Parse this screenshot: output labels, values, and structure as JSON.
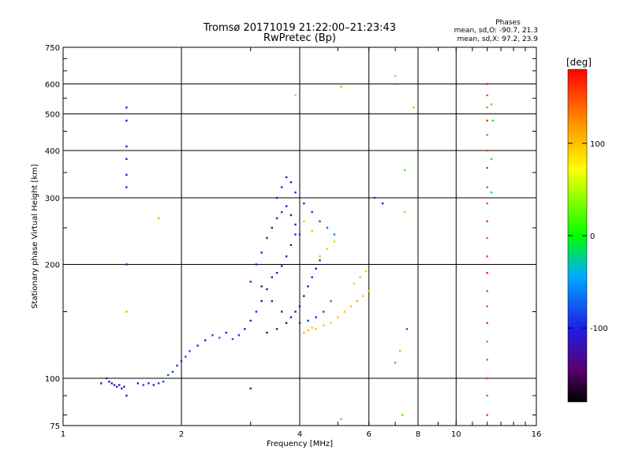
{
  "chart_data": {
    "type": "scatter",
    "title": "Tromsø 20171019 21:22:00–21:23:43",
    "subtitle": "RwPretec (Bp)",
    "xlabel": "Frequency [MHz]",
    "ylabel": "Stationary phase Virtual Height [km]",
    "x_scale": "log",
    "y_scale": "log",
    "xlim": [
      1,
      16
    ],
    "ylim": [
      75,
      750
    ],
    "x_ticks": [
      1,
      2,
      4,
      6,
      8,
      10,
      16
    ],
    "x_tick_labels": [
      "1",
      "2",
      "4",
      "6",
      "8",
      "10",
      "16"
    ],
    "y_ticks": [
      75,
      100,
      200,
      300,
      400,
      500,
      600,
      750
    ],
    "y_tick_labels": [
      "75",
      "100",
      "200",
      "300",
      "400",
      "500",
      "600",
      "750"
    ],
    "grid": true,
    "stats": {
      "heading": "Phases",
      "line1": "mean, sd,O: -90.7, 21.3",
      "line2": "mean, sd,X:  97.2, 23.9"
    },
    "colorbar": {
      "label": "[deg]",
      "range": [
        -180,
        180
      ],
      "ticks": [
        100,
        0,
        -100
      ],
      "tick_labels": [
        "100",
        "0",
        "-100"
      ]
    },
    "series": [
      {
        "points": [
          [
            1.25,
            97,
            -110
          ],
          [
            1.29,
            100,
            -115
          ],
          [
            1.31,
            98,
            -112
          ],
          [
            1.33,
            97,
            -108
          ],
          [
            1.35,
            96,
            -118
          ],
          [
            1.37,
            95,
            -105
          ],
          [
            1.39,
            96,
            -110
          ],
          [
            1.41,
            94,
            -100
          ],
          [
            1.43,
            95,
            -115
          ],
          [
            1.45,
            90,
            -120
          ],
          [
            1.55,
            97,
            -100
          ],
          [
            1.6,
            96,
            -90
          ],
          [
            1.65,
            97,
            -95
          ],
          [
            1.7,
            96,
            -100
          ],
          [
            1.75,
            97,
            -92
          ],
          [
            1.8,
            98,
            -85
          ],
          [
            1.85,
            102,
            -80
          ],
          [
            1.9,
            104,
            -90
          ],
          [
            1.95,
            108,
            -95
          ],
          [
            2.0,
            111,
            -100
          ],
          [
            2.05,
            114,
            -85
          ],
          [
            2.1,
            118,
            -80
          ],
          [
            2.2,
            122,
            -95
          ],
          [
            2.3,
            126,
            -100
          ],
          [
            2.4,
            130,
            -90
          ],
          [
            2.5,
            128,
            -70
          ],
          [
            2.6,
            132,
            -105
          ],
          [
            2.7,
            127,
            -80
          ],
          [
            2.8,
            130,
            -95
          ],
          [
            2.9,
            135,
            -110
          ],
          [
            3.0,
            142,
            -120
          ],
          [
            3.1,
            150,
            -100
          ],
          [
            3.2,
            160,
            -130
          ],
          [
            3.3,
            172,
            -115
          ],
          [
            3.4,
            185,
            -110
          ],
          [
            3.5,
            190,
            -120
          ],
          [
            3.6,
            198,
            -105
          ],
          [
            3.7,
            210,
            -115
          ],
          [
            3.8,
            225,
            -125
          ],
          [
            3.9,
            240,
            -100
          ],
          [
            3.1,
            200,
            -110
          ],
          [
            3.2,
            215,
            -100
          ],
          [
            3.3,
            235,
            -120
          ],
          [
            3.4,
            250,
            -115
          ],
          [
            3.5,
            265,
            -105
          ],
          [
            3.6,
            275,
            -95
          ],
          [
            3.7,
            285,
            -110
          ],
          [
            3.8,
            270,
            -120
          ],
          [
            3.9,
            255,
            -100
          ],
          [
            4.0,
            240,
            -90
          ],
          [
            3.0,
            180,
            -95
          ],
          [
            3.2,
            175,
            -130
          ],
          [
            3.4,
            160,
            -125
          ],
          [
            3.6,
            150,
            -110
          ],
          [
            3.8,
            145,
            -140
          ],
          [
            4.0,
            140,
            -120
          ],
          [
            4.2,
            142,
            -100
          ],
          [
            4.4,
            145,
            -110
          ],
          [
            4.6,
            150,
            -80
          ],
          [
            4.8,
            160,
            -60
          ],
          [
            3.5,
            300,
            -115
          ],
          [
            3.6,
            320,
            -110
          ],
          [
            3.7,
            340,
            -120
          ],
          [
            3.8,
            330,
            -100
          ],
          [
            3.9,
            310,
            -105
          ],
          [
            4.1,
            290,
            -95
          ],
          [
            4.3,
            275,
            -90
          ],
          [
            4.5,
            260,
            -80
          ],
          [
            4.7,
            250,
            -70
          ],
          [
            4.9,
            240,
            -60
          ],
          [
            4.2,
            175,
            -110
          ],
          [
            4.3,
            185,
            -100
          ],
          [
            4.4,
            195,
            -120
          ],
          [
            4.5,
            205,
            -95
          ],
          [
            4.1,
            165,
            -130
          ],
          [
            4.0,
            155,
            -125
          ],
          [
            3.9,
            150,
            -135
          ],
          [
            3.7,
            140,
            -150
          ],
          [
            3.5,
            135,
            -140
          ],
          [
            3.3,
            132,
            -145
          ],
          [
            4.1,
            132,
            110
          ],
          [
            4.2,
            134,
            100
          ],
          [
            4.3,
            136,
            95
          ],
          [
            4.4,
            135,
            105
          ],
          [
            4.6,
            138,
            100
          ],
          [
            4.8,
            140,
            90
          ],
          [
            5.0,
            145,
            95
          ],
          [
            5.2,
            150,
            100
          ],
          [
            5.4,
            155,
            105
          ],
          [
            5.6,
            160,
            110
          ],
          [
            5.8,
            165,
            100
          ],
          [
            6.0,
            170,
            95
          ],
          [
            5.5,
            178,
            90
          ],
          [
            5.7,
            185,
            100
          ],
          [
            5.9,
            192,
            95
          ],
          [
            4.5,
            210,
            110
          ],
          [
            4.7,
            220,
            100
          ],
          [
            4.9,
            230,
            95
          ],
          [
            4.3,
            245,
            105
          ],
          [
            4.1,
            260,
            100
          ],
          [
            1.45,
            520,
            -100
          ],
          [
            1.45,
            480,
            -110
          ],
          [
            1.45,
            410,
            -120
          ],
          [
            1.45,
            380,
            -100
          ],
          [
            1.45,
            345,
            -110
          ],
          [
            1.45,
            320,
            -95
          ],
          [
            1.45,
            200,
            -120
          ],
          [
            1.45,
            150,
            110
          ],
          [
            12.0,
            600,
            170
          ],
          [
            12.0,
            560,
            150
          ],
          [
            12.0,
            520,
            130
          ],
          [
            12.0,
            480,
            160
          ],
          [
            12.0,
            440,
            140
          ],
          [
            12.0,
            400,
            155
          ],
          [
            12.0,
            360,
            165
          ],
          [
            12.0,
            320,
            145
          ],
          [
            12.0,
            290,
            150
          ],
          [
            12.0,
            260,
            160
          ],
          [
            12.0,
            235,
            140
          ],
          [
            12.0,
            210,
            155
          ],
          [
            12.0,
            190,
            165
          ],
          [
            12.0,
            170,
            150
          ],
          [
            12.0,
            155,
            145
          ],
          [
            12.0,
            140,
            160
          ],
          [
            12.0,
            125,
            135
          ],
          [
            12.0,
            112,
            150
          ],
          [
            12.0,
            100,
            160
          ],
          [
            12.0,
            90,
            145
          ],
          [
            12.0,
            80,
            155
          ],
          [
            12.3,
            530,
            10
          ],
          [
            12.3,
            380,
            0
          ],
          [
            12.3,
            310,
            -20
          ],
          [
            12.4,
            480,
            -10
          ],
          [
            7.0,
            630,
            110
          ],
          [
            7.0,
            600,
            150
          ],
          [
            7.8,
            520,
            20
          ],
          [
            7.4,
            355,
            10
          ],
          [
            7.4,
            275,
            30
          ],
          [
            7.5,
            135,
            -80
          ],
          [
            7.2,
            118,
            110
          ],
          [
            7.0,
            110,
            130
          ],
          [
            7.3,
            80,
            20
          ],
          [
            5.1,
            78,
            10
          ],
          [
            3.0,
            94,
            -120
          ],
          [
            1.75,
            265,
            110
          ],
          [
            3.9,
            560,
            100
          ],
          [
            5.1,
            590,
            20
          ],
          [
            6.2,
            300,
            -90
          ],
          [
            6.5,
            290,
            -100
          ]
        ]
      }
    ]
  }
}
